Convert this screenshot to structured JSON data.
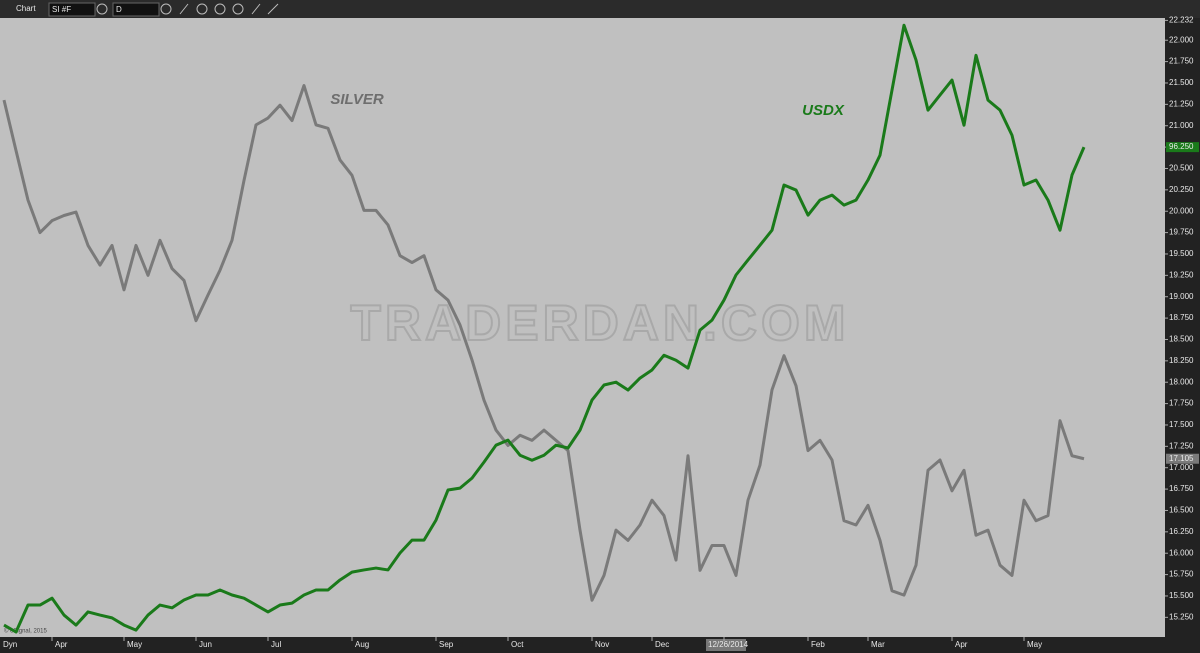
{
  "toolbar": {
    "title": "Chart",
    "symbol": "SI #F",
    "interval": "D",
    "mode": "Dyn",
    "copyright": "© eSignal, 2015"
  },
  "chart_data": {
    "type": "line",
    "watermark": "TRADERDAN.COM",
    "annotations": [
      "SILVER",
      "USDX"
    ],
    "categories": [
      null,
      null,
      null,
      null,
      "Apr",
      null,
      null,
      null,
      null,
      null,
      "May",
      null,
      null,
      null,
      null,
      null,
      "Jun",
      null,
      null,
      null,
      null,
      null,
      "Jul",
      null,
      null,
      null,
      null,
      null,
      null,
      "Aug",
      null,
      null,
      null,
      null,
      null,
      null,
      "Sep",
      null,
      null,
      null,
      null,
      null,
      "Oct",
      null,
      null,
      null,
      null,
      null,
      null,
      "Nov",
      null,
      null,
      null,
      null,
      "Dec",
      null,
      null,
      null,
      null,
      null,
      "12/26/2014",
      null,
      null,
      null,
      null,
      null,
      null,
      "Feb",
      null,
      null,
      null,
      null,
      "Mar",
      null,
      null,
      null,
      null,
      null,
      null,
      "Apr",
      null,
      null,
      null,
      null,
      null,
      "May",
      null,
      null,
      null,
      null,
      null
    ],
    "ylim": [
      15.02,
      22.26
    ],
    "y2lim": [
      80.62,
      100.37
    ],
    "yticks": [
      {
        "value": 15.25,
        "label": "15.250"
      },
      {
        "value": 15.5,
        "label": "15.500"
      },
      {
        "value": 15.75,
        "label": "15.750"
      },
      {
        "value": 16,
        "label": "16.000"
      },
      {
        "value": 16.25,
        "label": "16.250"
      },
      {
        "value": 16.5,
        "label": "16.500"
      },
      {
        "value": 16.75,
        "label": "16.750"
      },
      {
        "value": 17,
        "label": "17.000"
      },
      {
        "value": 17.25,
        "label": "17.250"
      },
      {
        "value": 17.5,
        "label": "17.500"
      },
      {
        "value": 17.75,
        "label": "17.750"
      },
      {
        "value": 18,
        "label": "18.000"
      },
      {
        "value": 18.25,
        "label": "18.250"
      },
      {
        "value": 18.5,
        "label": "18.500"
      },
      {
        "value": 18.75,
        "label": "18.750"
      },
      {
        "value": 19,
        "label": "19.000"
      },
      {
        "value": 19.25,
        "label": "19.250"
      },
      {
        "value": 19.5,
        "label": "19.500"
      },
      {
        "value": 19.75,
        "label": "19.750"
      },
      {
        "value": 20,
        "label": "20.000"
      },
      {
        "value": 20.25,
        "label": "20.250"
      },
      {
        "value": 20.5,
        "label": "20.500"
      },
      {
        "value": 20.75,
        "label": "20.750"
      },
      {
        "value": 21,
        "label": "21.000"
      },
      {
        "value": 21.25,
        "label": "21.250"
      },
      {
        "value": 21.5,
        "label": "21.500"
      },
      {
        "value": 21.75,
        "label": "21.750"
      },
      {
        "value": 22,
        "label": "22.000"
      },
      22.232
    ],
    "series": [
      {
        "name": "SILVER",
        "color": "#7a7a7a",
        "values": [
          21.3,
          20.71,
          20.13,
          19.75,
          19.89,
          19.95,
          19.99,
          19.6,
          19.37,
          19.6,
          19.08,
          19.6,
          19.25,
          19.66,
          19.33,
          19.19,
          18.72,
          19.02,
          19.31,
          19.66,
          20.36,
          21.01,
          21.09,
          21.24,
          21.06,
          21.47,
          21.01,
          20.97,
          20.6,
          20.42,
          20.01,
          20.01,
          19.84,
          19.48,
          19.4,
          19.48,
          19.08,
          18.96,
          18.67,
          18.26,
          17.79,
          17.44,
          17.26,
          17.38,
          17.32,
          17.44,
          17.32,
          17.2,
          16.27,
          15.45,
          15.74,
          16.27,
          16.15,
          16.33,
          16.62,
          16.44,
          15.92,
          17.14,
          15.8,
          16.09,
          16.09,
          15.74,
          16.62,
          17.03,
          17.91,
          18.31,
          17.96,
          17.2,
          17.32,
          17.09,
          16.38,
          16.33,
          16.56,
          16.15,
          15.56,
          15.51,
          15.86,
          16.97,
          17.09,
          16.73,
          16.97,
          16.21,
          16.27,
          15.86,
          15.74,
          16.62,
          16.38,
          16.44,
          17.55,
          17.14,
          17.105
        ]
      },
      {
        "name": "USDX",
        "color": "#1a7a1a",
        "axis": "y2",
        "values": [
          81.0,
          80.78,
          81.64,
          81.64,
          81.86,
          81.32,
          81.0,
          81.42,
          81.32,
          81.23,
          81.0,
          80.84,
          81.32,
          81.64,
          81.55,
          81.8,
          81.96,
          81.96,
          82.12,
          81.96,
          81.86,
          81.64,
          81.42,
          81.64,
          81.7,
          81.96,
          82.12,
          82.12,
          82.44,
          82.69,
          82.76,
          82.82,
          82.76,
          83.3,
          83.71,
          83.71,
          84.35,
          85.31,
          85.37,
          85.69,
          86.2,
          86.74,
          86.9,
          86.42,
          86.26,
          86.42,
          86.74,
          86.65,
          87.22,
          88.18,
          88.66,
          88.75,
          88.5,
          88.88,
          89.14,
          89.61,
          89.45,
          89.2,
          90.41,
          90.73,
          91.37,
          92.17,
          92.65,
          93.12,
          93.6,
          95.04,
          94.88,
          94.08,
          94.56,
          94.72,
          94.4,
          94.56,
          95.2,
          95.99,
          98.07,
          100.14,
          99.03,
          97.43,
          97.91,
          98.39,
          96.95,
          99.18,
          97.75,
          97.43,
          96.63,
          95.04,
          95.2,
          94.56,
          93.6,
          95.36,
          96.25
        ],
        "value_labels": [
          null,
          null,
          null,
          null,
          null,
          null,
          null,
          null,
          null,
          null,
          null,
          null,
          null,
          null,
          null,
          null,
          null,
          null,
          null,
          null,
          null,
          null,
          null,
          null,
          null,
          null,
          null,
          null,
          null,
          null,
          null,
          null,
          null,
          null,
          null,
          null,
          null,
          null,
          null,
          null,
          null,
          null,
          null,
          null,
          null,
          null,
          null,
          null,
          null,
          null,
          null,
          null,
          null,
          null,
          null,
          null,
          null,
          null,
          null,
          null,
          null,
          null,
          null,
          null,
          null,
          null,
          null,
          null,
          null,
          null,
          null,
          null,
          null,
          null,
          null,
          null,
          null,
          null,
          null,
          null,
          null,
          null,
          null,
          null,
          null,
          null,
          null,
          null,
          null,
          null,
          "96.250"
        ]
      }
    ]
  }
}
